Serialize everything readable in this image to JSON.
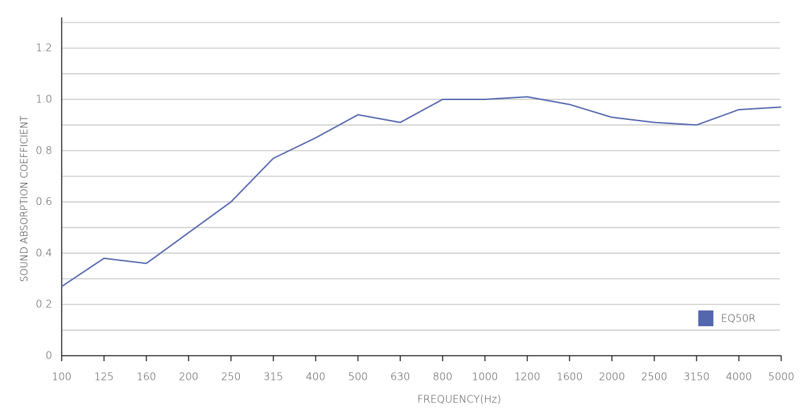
{
  "chart_data": {
    "type": "line",
    "x_label": "FREQUENCY(Hz)",
    "y_label": "SOUND ABSORPTION COEFFICIENT",
    "categories": [
      "100",
      "125",
      "160",
      "200",
      "250",
      "315",
      "400",
      "500",
      "630",
      "800",
      "1000",
      "1200",
      "1600",
      "2000",
      "2500",
      "3150",
      "4000",
      "5000"
    ],
    "series": [
      {
        "name": "EQ50R",
        "color": "#5466ae",
        "values": [
          0.27,
          0.38,
          0.36,
          0.48,
          0.6,
          0.77,
          0.85,
          0.94,
          0.91,
          1.0,
          1.0,
          1.01,
          0.98,
          0.93,
          0.91,
          0.9,
          0.96,
          0.97
        ]
      }
    ],
    "ylim": [
      0,
      1.32
    ],
    "yticks": [
      0,
      0.2,
      0.4,
      0.6,
      0.8,
      {
        "value": 1,
        "label": "1.0"
      },
      1.2
    ],
    "minor_grid": [
      0.1,
      0.3,
      0.5,
      0.7,
      0.9,
      1.1,
      1.3
    ],
    "grid": true,
    "legend": "lower right"
  }
}
